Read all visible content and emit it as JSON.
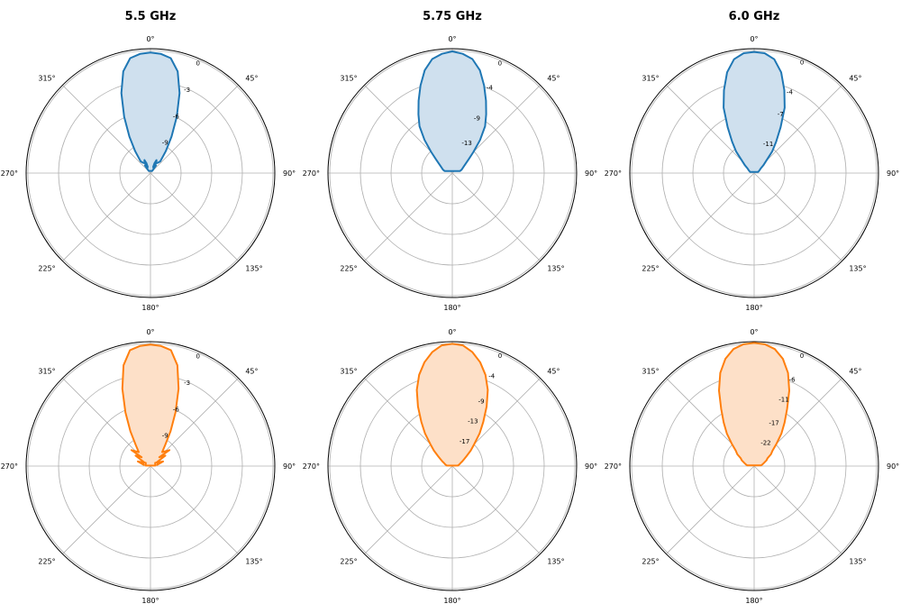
{
  "chart_data": [
    {
      "type": "polar",
      "title": "5.5 GHz",
      "angle_labels": [
        "0°",
        "45°",
        "90°",
        "135°",
        "180°",
        "225°",
        "270°",
        "315°"
      ],
      "radial_tick_labels": [
        "0",
        "-3",
        "-6",
        "-9"
      ],
      "radial_ticks_db": [
        0,
        -3,
        -6,
        -9
      ],
      "rlim_db": [
        -12.5,
        0.5
      ],
      "series": [
        {
          "color": "#1f77b4",
          "fill": "#cfe0ee",
          "theta_deg": [
            0,
            5,
            10,
            15,
            20,
            25,
            30,
            35,
            40,
            35,
            30,
            25,
            22,
            24,
            28,
            32,
            36,
            40,
            -40,
            -36,
            -32,
            -28,
            -24,
            -22,
            -25,
            -30,
            -35,
            -40,
            -35,
            -30,
            -25,
            -20,
            -15,
            -10,
            -5
          ],
          "r_db": [
            0.1,
            0,
            -0.3,
            -1.5,
            -3.6,
            -6.0,
            -8.1,
            -9.7,
            -10.9,
            -11.2,
            -11.3,
            -11.0,
            -11.4,
            -11.8,
            -11.3,
            -11.9,
            -11.5,
            -12.2,
            -12.2,
            -11.5,
            -11.9,
            -11.3,
            -11.8,
            -11.4,
            -11.0,
            -11.3,
            -11.2,
            -10.9,
            -9.7,
            -8.1,
            -6.0,
            -3.6,
            -1.5,
            -0.3,
            0
          ]
        }
      ]
    },
    {
      "type": "polar",
      "title": "5.75 GHz",
      "angle_labels": [
        "0°",
        "45°",
        "90°",
        "135°",
        "180°",
        "225°",
        "270°",
        "315°"
      ],
      "radial_tick_labels": [
        "0",
        "-4",
        "-9",
        "-13"
      ],
      "radial_ticks_db": [
        0,
        -4,
        -9,
        -13
      ],
      "rlim_db": [
        -18,
        0.7
      ],
      "series": [
        {
          "color": "#1f77b4",
          "fill": "#cfe0ee",
          "theta_deg": [
            0,
            5,
            10,
            15,
            20,
            25,
            30,
            35,
            40,
            45,
            50,
            60,
            70,
            75,
            -75,
            -70,
            -60,
            -50,
            -45,
            -40,
            -35,
            -30,
            -25,
            -20,
            -15,
            -10,
            -5
          ],
          "r_db": [
            0.3,
            0,
            -0.6,
            -2.0,
            -4.0,
            -6.0,
            -7.8,
            -9.4,
            -11.5,
            -13.5,
            -14.8,
            -16.0,
            -16.5,
            -16.8,
            -16.8,
            -16.5,
            -16.0,
            -14.8,
            -13.5,
            -11.5,
            -9.4,
            -7.8,
            -6.0,
            -4.0,
            -2.0,
            -0.6,
            0
          ]
        }
      ]
    },
    {
      "type": "polar",
      "title": "6.0 GHz",
      "angle_labels": [
        "0°",
        "45°",
        "90°",
        "135°",
        "180°",
        "225°",
        "270°",
        "315°"
      ],
      "radial_tick_labels": [
        "0",
        "-4",
        "-7",
        "-11"
      ],
      "radial_ticks_db": [
        0,
        -4,
        -7,
        -11
      ],
      "rlim_db": [
        -15,
        0.5
      ],
      "series": [
        {
          "color": "#1f77b4",
          "fill": "#cfe0ee",
          "theta_deg": [
            0,
            5,
            10,
            15,
            20,
            25,
            30,
            35,
            40,
            50,
            55,
            65,
            75,
            -75,
            -65,
            -55,
            -50,
            -40,
            -35,
            -30,
            -25,
            -20,
            -15,
            -10,
            -5
          ],
          "r_db": [
            0.1,
            0,
            -0.6,
            -2.0,
            -4.0,
            -6.0,
            -8.4,
            -10.2,
            -11.5,
            -13.5,
            -14.0,
            -14.3,
            -14.5,
            -14.5,
            -14.3,
            -14.0,
            -13.5,
            -11.5,
            -10.2,
            -8.4,
            -6.0,
            -4.0,
            -2.0,
            -0.6,
            0
          ]
        }
      ]
    },
    {
      "type": "polar",
      "title": "",
      "angle_labels": [
        "0°",
        "45°",
        "90°",
        "135°",
        "180°",
        "225°",
        "270°",
        "315°"
      ],
      "radial_tick_labels": [
        "0",
        "-3",
        "-6",
        "-9"
      ],
      "radial_ticks_db": [
        0,
        -3,
        -6,
        -9
      ],
      "rlim_db": [
        -12.5,
        0.5
      ],
      "series": [
        {
          "color": "#ff7f0e",
          "fill": "#fde0c8",
          "theta_deg": [
            0,
            5,
            10,
            15,
            20,
            25,
            30,
            35,
            40,
            50,
            45,
            55,
            60,
            70,
            80,
            65,
            55,
            85,
            75,
            -75,
            -85,
            -55,
            -65,
            -80,
            -70,
            -60,
            -55,
            -45,
            -50,
            -40,
            -35,
            -30,
            -25,
            -20,
            -15,
            -10,
            -5
          ],
          "r_db": [
            0.2,
            0.1,
            -0.2,
            -1.6,
            -3.9,
            -6.3,
            -8.3,
            -9.8,
            -10.6,
            -9.9,
            -11.2,
            -10.6,
            -11.8,
            -11.1,
            -11.8,
            -11.5,
            -11.9,
            -12.0,
            -12.3,
            -12.3,
            -12.0,
            -11.9,
            -11.5,
            -11.8,
            -11.1,
            -11.8,
            -10.6,
            -11.2,
            -9.9,
            -10.6,
            -9.8,
            -8.3,
            -6.3,
            -3.9,
            -1.6,
            -0.2,
            0.1
          ]
        }
      ]
    },
    {
      "type": "polar",
      "title": "",
      "angle_labels": [
        "0°",
        "45°",
        "90°",
        "135°",
        "180°",
        "225°",
        "270°",
        "315°"
      ],
      "radial_tick_labels": [
        "0",
        "-4",
        "-9",
        "-13",
        "-17"
      ],
      "radial_ticks_db": [
        0,
        -4,
        -9,
        -13,
        -17
      ],
      "rlim_db": [
        -22,
        0.8
      ],
      "series": [
        {
          "color": "#ff7f0e",
          "fill": "#fde0c8",
          "theta_deg": [
            0,
            5,
            10,
            15,
            20,
            25,
            30,
            35,
            40,
            45,
            50,
            55,
            60,
            65,
            70,
            75,
            80,
            85,
            -85,
            -80,
            -75,
            -70,
            -65,
            -60,
            -55,
            -50,
            -45,
            -40,
            -35,
            -30,
            -25,
            -20,
            -15,
            -10,
            -5
          ],
          "r_db": [
            0.4,
            0.2,
            -0.8,
            -2.3,
            -4.2,
            -6.6,
            -9.4,
            -12.1,
            -14.2,
            -16.3,
            -17.6,
            -18.8,
            -19.5,
            -20.0,
            -20.4,
            -20.6,
            -20.8,
            -21.0,
            -21.0,
            -20.8,
            -20.6,
            -20.4,
            -20.0,
            -19.5,
            -18.8,
            -17.6,
            -16.3,
            -14.2,
            -12.1,
            -9.4,
            -6.6,
            -4.2,
            -2.3,
            -0.8,
            0.2
          ]
        }
      ]
    },
    {
      "type": "polar",
      "title": "",
      "angle_labels": [
        "0°",
        "45°",
        "90°",
        "135°",
        "180°",
        "225°",
        "270°",
        "315°"
      ],
      "radial_tick_labels": [
        "0",
        "-6",
        "-11",
        "-17",
        "-22"
      ],
      "radial_ticks_db": [
        0,
        -6,
        -11,
        -17,
        -22
      ],
      "rlim_db": [
        -28,
        1
      ],
      "series": [
        {
          "color": "#ff7f0e",
          "fill": "#fde0c8",
          "theta_deg": [
            0,
            5,
            10,
            15,
            20,
            25,
            30,
            35,
            40,
            45,
            50,
            55,
            60,
            65,
            70,
            75,
            80,
            85,
            -85,
            -80,
            -75,
            -70,
            -65,
            -60,
            -55,
            -50,
            -45,
            -40,
            -35,
            -30,
            -25,
            -20,
            -15,
            -10,
            -5
          ],
          "r_db": [
            0.7,
            0.5,
            -0.3,
            -2.1,
            -4.9,
            -8.6,
            -12.6,
            -15.6,
            -18.1,
            -20.6,
            -22.4,
            -23.2,
            -24.4,
            -24.8,
            -25.4,
            -25.8,
            -26.1,
            -26.4,
            -26.4,
            -26.1,
            -25.8,
            -25.4,
            -24.8,
            -24.4,
            -23.2,
            -22.4,
            -20.6,
            -18.1,
            -15.6,
            -12.6,
            -8.6,
            -4.9,
            -2.1,
            -0.3,
            0.5
          ]
        }
      ]
    }
  ]
}
